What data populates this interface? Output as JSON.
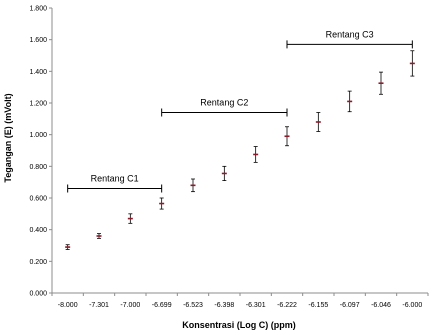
{
  "chart_data": {
    "type": "scatter",
    "title": "",
    "xlabel": "Konsentrasi  (Log C) (ppm)",
    "ylabel": "Tegangan (E) (mVolt)",
    "ylim": [
      0,
      1.8
    ],
    "y_ticks": [
      "0.000",
      "0.200",
      "0.400",
      "0.600",
      "0.800",
      "1.000",
      "1.200",
      "1.400",
      "1.600",
      "1.800"
    ],
    "categories": [
      "-8.000",
      "-7.301",
      "-7.000",
      "-6.699",
      "-6.523",
      "-6.398",
      "-6.301",
      "-6.222",
      "-6.155",
      "-6.097",
      "-6.046",
      "-6.000"
    ],
    "series": [
      {
        "values": [
          0.29,
          0.36,
          0.47,
          0.565,
          0.68,
          0.755,
          0.875,
          0.99,
          1.08,
          1.21,
          1.325,
          1.45
        ],
        "errors": [
          0.015,
          0.015,
          0.03,
          0.035,
          0.04,
          0.045,
          0.05,
          0.06,
          0.06,
          0.065,
          0.07,
          0.08
        ]
      }
    ],
    "annotations": [
      {
        "label": "Rentang C1",
        "from": "-8.000",
        "to": "-6.699",
        "y": 0.66
      },
      {
        "label": "Rentang C2",
        "from": "-6.699",
        "to": "-6.222",
        "y": 1.14
      },
      {
        "label": "Rentang C3",
        "from": "-6.222",
        "to": "-6.000",
        "y": 1.57
      }
    ],
    "marker_color": "#8b1a2b",
    "error_color": "#000000",
    "axis_color": "#8c8c8c",
    "grid": false,
    "legend": "none"
  }
}
